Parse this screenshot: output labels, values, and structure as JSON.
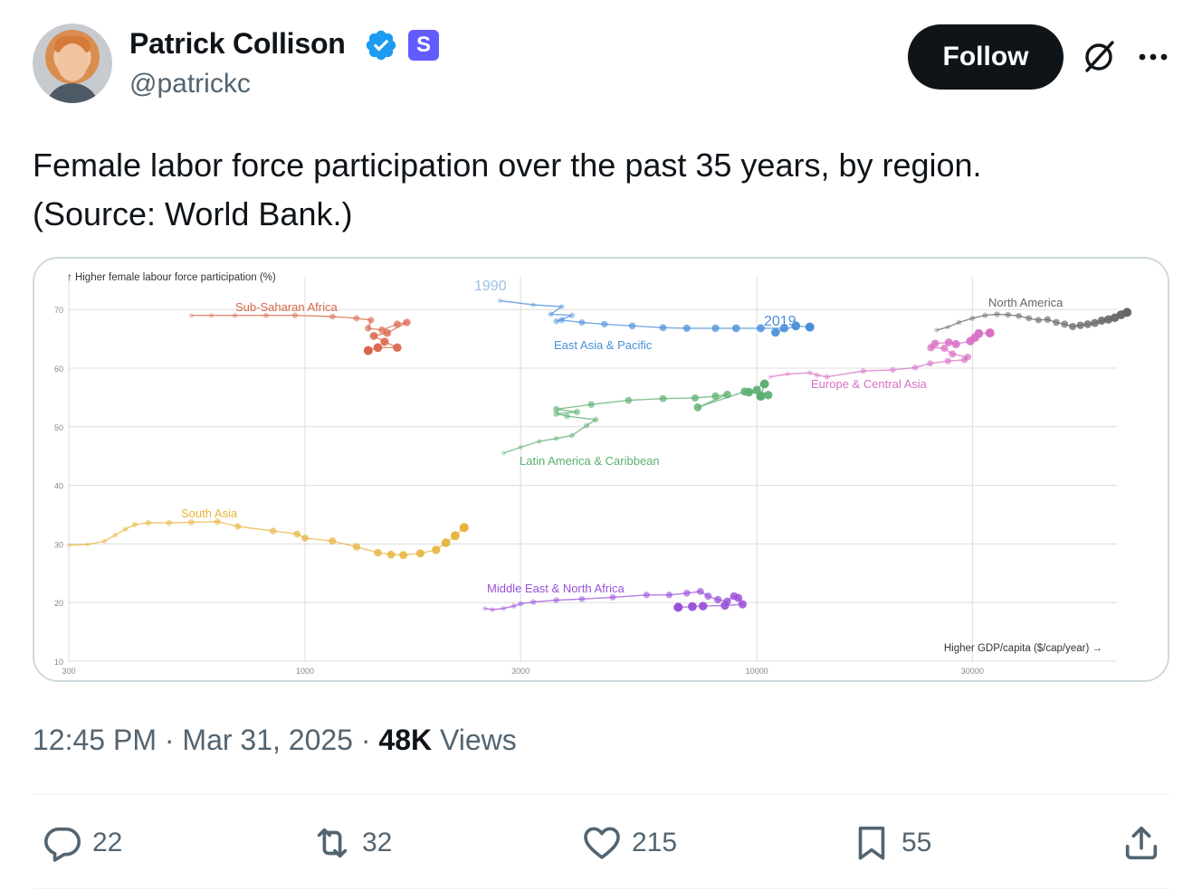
{
  "author": {
    "name": "Patrick Collison",
    "handle": "@patrickc",
    "avatar_icon": "user-avatar",
    "verified_icon": "verified-badge-icon",
    "affiliation_badge": "S",
    "affiliation_color": "#635bff",
    "verified_color": "#1d9bf0"
  },
  "follow_label": "Follow",
  "tweet": {
    "line1": "Female labor force participation over the past 35 years, by region.",
    "line2": "(Source: World Bank.)"
  },
  "meta": {
    "time": "12:45 PM",
    "sep1": " · ",
    "date": "Mar 31, 2025",
    "sep2": " · ",
    "views_count": "48K",
    "views_label": " Views"
  },
  "actions": {
    "replies": "22",
    "reposts": "32",
    "likes": "215",
    "bookmarks": "55"
  },
  "chart_data": {
    "type": "line",
    "title": "",
    "ylabel": "↑ Higher female labour force participation (%)",
    "xlabel": "Higher GDP/capita ($/cap/year) →",
    "x_scale": "log",
    "xlim": [
      300,
      60000
    ],
    "ylim": [
      10,
      73
    ],
    "x_ticks": [
      300,
      1000,
      3000,
      10000,
      30000
    ],
    "y_ticks": [
      10,
      20,
      30,
      40,
      50,
      60,
      70
    ],
    "annotations": [
      "1990",
      "2019"
    ],
    "series": [
      {
        "name": "Sub-Saharan Africa",
        "color": "#d9664a",
        "points": [
          [
            560,
            69
          ],
          [
            620,
            69
          ],
          [
            700,
            69
          ],
          [
            820,
            69
          ],
          [
            950,
            69
          ],
          [
            1150,
            68.8
          ],
          [
            1300,
            68.5
          ],
          [
            1400,
            68.2
          ],
          [
            1380,
            66.8
          ],
          [
            1480,
            66.5
          ],
          [
            1600,
            67.5
          ],
          [
            1680,
            67.8
          ],
          [
            1520,
            66
          ],
          [
            1420,
            65.5
          ],
          [
            1500,
            64.5
          ],
          [
            1600,
            63.5
          ],
          [
            1450,
            63.5
          ],
          [
            1380,
            63
          ]
        ]
      },
      {
        "name": "East Asia & Pacific",
        "color": "#4a90d9",
        "points": [
          [
            2700,
            71.5
          ],
          [
            3200,
            70.8
          ],
          [
            3700,
            70.5
          ],
          [
            3500,
            69.2
          ],
          [
            3900,
            69
          ],
          [
            3600,
            68
          ],
          [
            3700,
            68.2
          ],
          [
            4100,
            67.8
          ],
          [
            4600,
            67.5
          ],
          [
            5300,
            67.2
          ],
          [
            6200,
            66.9
          ],
          [
            7000,
            66.8
          ],
          [
            8100,
            66.8
          ],
          [
            9000,
            66.8
          ],
          [
            10200,
            66.8
          ],
          [
            11500,
            66.8
          ],
          [
            11000,
            66.1
          ],
          [
            12200,
            67.2
          ],
          [
            13100,
            67
          ]
        ]
      },
      {
        "name": "Latin America & Caribbean",
        "color": "#5cae70",
        "points": [
          [
            2750,
            45.5
          ],
          [
            3000,
            46.5
          ],
          [
            3300,
            47.5
          ],
          [
            3600,
            48
          ],
          [
            3900,
            48.5
          ],
          [
            4200,
            50.2
          ],
          [
            4400,
            51.2
          ],
          [
            3800,
            51.8
          ],
          [
            3600,
            52.2
          ],
          [
            4000,
            52.5
          ],
          [
            3600,
            53
          ],
          [
            4300,
            53.8
          ],
          [
            5200,
            54.5
          ],
          [
            6200,
            54.8
          ],
          [
            7300,
            54.9
          ],
          [
            8100,
            55.2
          ],
          [
            8600,
            55.5
          ],
          [
            7400,
            53.3
          ],
          [
            9400,
            56
          ],
          [
            10000,
            56.3
          ],
          [
            10600,
            55.4
          ],
          [
            9600,
            55.9
          ],
          [
            10400,
            57.3
          ],
          [
            10200,
            55.2
          ]
        ]
      },
      {
        "name": "Europe & Central Asia",
        "color": "#d86fc4",
        "points": [
          [
            10700,
            58.5
          ],
          [
            11700,
            59
          ],
          [
            13100,
            59.2
          ],
          [
            13600,
            58.8
          ],
          [
            14300,
            58.5
          ],
          [
            17200,
            59.5
          ],
          [
            20000,
            59.7
          ],
          [
            22400,
            60.1
          ],
          [
            24200,
            60.8
          ],
          [
            26500,
            61.2
          ],
          [
            28800,
            61.4
          ],
          [
            29300,
            61.9
          ],
          [
            27100,
            62.4
          ],
          [
            26000,
            63.4
          ],
          [
            24300,
            63.5
          ],
          [
            24800,
            64.2
          ],
          [
            26600,
            64.4
          ],
          [
            27600,
            64.1
          ],
          [
            29700,
            64.6
          ],
          [
            30400,
            65.2
          ],
          [
            31000,
            65.9
          ],
          [
            32800,
            66
          ]
        ]
      },
      {
        "name": "North America",
        "color": "#666666",
        "points": [
          [
            25000,
            66.5
          ],
          [
            26500,
            67
          ],
          [
            28000,
            67.8
          ],
          [
            30000,
            68.5
          ],
          [
            32000,
            69
          ],
          [
            34000,
            69.2
          ],
          [
            36000,
            69.1
          ],
          [
            38000,
            68.9
          ],
          [
            40000,
            68.5
          ],
          [
            42000,
            68.2
          ],
          [
            44000,
            68.3
          ],
          [
            46000,
            67.8
          ],
          [
            48000,
            67.5
          ],
          [
            50000,
            67.1
          ],
          [
            52000,
            67.3
          ],
          [
            54000,
            67.5
          ],
          [
            56000,
            67.7
          ],
          [
            58000,
            68.1
          ],
          [
            60000,
            68.3
          ],
          [
            62000,
            68.6
          ],
          [
            64000,
            69.1
          ],
          [
            66000,
            69.5
          ]
        ]
      },
      {
        "name": "South Asia",
        "color": "#e6b43c",
        "points": [
          [
            300,
            29.8
          ],
          [
            330,
            29.9
          ],
          [
            360,
            30.5
          ],
          [
            380,
            31.5
          ],
          [
            400,
            32.5
          ],
          [
            420,
            33.3
          ],
          [
            450,
            33.6
          ],
          [
            500,
            33.6
          ],
          [
            560,
            33.7
          ],
          [
            640,
            33.8
          ],
          [
            710,
            33
          ],
          [
            850,
            32.2
          ],
          [
            960,
            31.7
          ],
          [
            1000,
            31
          ],
          [
            1150,
            30.5
          ],
          [
            1300,
            29.5
          ],
          [
            1450,
            28.5
          ],
          [
            1550,
            28.2
          ],
          [
            1650,
            28.1
          ],
          [
            1800,
            28.4
          ],
          [
            1950,
            29
          ],
          [
            2050,
            30.2
          ],
          [
            2150,
            31.4
          ],
          [
            2250,
            32.8
          ]
        ]
      },
      {
        "name": "Middle East & North Africa",
        "color": "#9a50d9",
        "points": [
          [
            2500,
            19
          ],
          [
            2600,
            18.8
          ],
          [
            2750,
            19
          ],
          [
            2900,
            19.4
          ],
          [
            3000,
            19.8
          ],
          [
            3200,
            20.1
          ],
          [
            3600,
            20.4
          ],
          [
            4100,
            20.6
          ],
          [
            4800,
            20.9
          ],
          [
            5700,
            21.3
          ],
          [
            6400,
            21.3
          ],
          [
            7000,
            21.6
          ],
          [
            7500,
            21.9
          ],
          [
            7800,
            21.1
          ],
          [
            8200,
            20.5
          ],
          [
            8600,
            20.2
          ],
          [
            8900,
            21.1
          ],
          [
            9100,
            20.8
          ],
          [
            9300,
            19.7
          ],
          [
            8500,
            19.5
          ],
          [
            7600,
            19.4
          ],
          [
            7200,
            19.3
          ],
          [
            6700,
            19.2
          ]
        ]
      }
    ]
  }
}
